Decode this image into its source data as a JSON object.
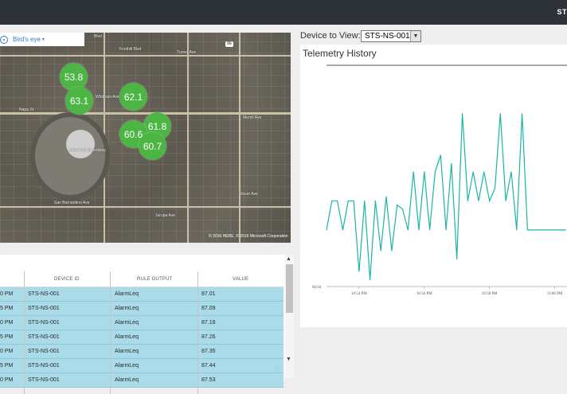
{
  "header": {
    "user_label": "ST"
  },
  "map": {
    "mode_label": "Bird's eye",
    "route_shield": "66",
    "copyright": "© 2016 HERE, © 2016 Microsoft Corporation",
    "labels": [
      "Blvd",
      "Foothill Blvd",
      "Turner Ave",
      "Whittram Ave",
      "Merrill Ave",
      "Napa St",
      "Auto Club Speedway",
      "San Bernardino Ave",
      "Jurupa Ave",
      "Slover Ave"
    ],
    "pins": [
      "53.8",
      "63.1",
      "62.1",
      "61.8",
      "60.6",
      "60.7"
    ]
  },
  "table": {
    "columns": [
      "DEVICE ID",
      "RULE OUTPUT",
      "VALUE"
    ],
    "rows": [
      {
        "time": "0 PM",
        "device": "STS-NS-001",
        "rule": "AlarmLeq",
        "value": "87.01"
      },
      {
        "time": "5 PM",
        "device": "STS-NS-001",
        "rule": "AlarmLeq",
        "value": "87.09"
      },
      {
        "time": "0 PM",
        "device": "STS-NS-001",
        "rule": "AlarmLeq",
        "value": "87.18"
      },
      {
        "time": "5 PM",
        "device": "STS-NS-001",
        "rule": "AlarmLeq",
        "value": "87.26"
      },
      {
        "time": "0 PM",
        "device": "STS-NS-001",
        "rule": "AlarmLeq",
        "value": "87.35"
      },
      {
        "time": "5 PM",
        "device": "STS-NS-001",
        "rule": "AlarmLeq",
        "value": "87.44"
      },
      {
        "time": "0 PM",
        "device": "STS-NS-001",
        "rule": "AlarmLeq",
        "value": "87.53"
      }
    ]
  },
  "device_picker": {
    "label": "Device to View:",
    "selected": "STS-NS-001"
  },
  "telemetry": {
    "title": "Telemetry History",
    "line_color": "#1ab5a6",
    "y_tick": "60.64",
    "x_ticks": [
      "10:54 PM",
      "10:56 PM",
      "10:58 PM",
      "11:00 PM"
    ]
  },
  "chart_data": {
    "type": "line",
    "title": "Telemetry History",
    "xlabel": "",
    "ylabel": "",
    "x": [
      "10:53:00",
      "10:53:10",
      "10:53:20",
      "10:53:30",
      "10:53:40",
      "10:53:50",
      "10:54:00",
      "10:54:10",
      "10:54:20",
      "10:54:30",
      "10:54:40",
      "10:54:50",
      "10:55:00",
      "10:55:10",
      "10:55:20",
      "10:55:30",
      "10:55:40",
      "10:55:50",
      "10:56:00",
      "10:56:10",
      "10:56:20",
      "10:56:30",
      "10:56:40",
      "10:56:50",
      "10:57:00",
      "10:57:10",
      "10:57:20",
      "10:57:30",
      "10:57:40",
      "10:57:50",
      "10:58:00",
      "10:58:10",
      "10:58:20",
      "10:58:30",
      "10:58:40",
      "10:58:50",
      "10:59:00",
      "10:59:10",
      "10:59:20",
      "10:59:30",
      "10:59:40",
      "10:59:50",
      "11:00:00",
      "11:00:10",
      "11:00:20"
    ],
    "series": [
      {
        "values": [
          62.0,
          62.7,
          62.7,
          62.0,
          62.7,
          62.7,
          61.0,
          62.7,
          60.8,
          62.7,
          61.5,
          62.8,
          61.5,
          62.6,
          62.5,
          62.0,
          63.4,
          62.0,
          63.4,
          62.0,
          63.4,
          63.8,
          62.0,
          63.6,
          61.3,
          64.8,
          62.7,
          63.4,
          62.7,
          63.4,
          62.7,
          63.0,
          64.8,
          62.7,
          63.4,
          62.0,
          64.8,
          62.0,
          62.0,
          62.0,
          62.0,
          62.0,
          62.0,
          62.0,
          62.0
        ]
      }
    ],
    "ylim": [
      60.64,
      65.5
    ],
    "grid": false
  }
}
